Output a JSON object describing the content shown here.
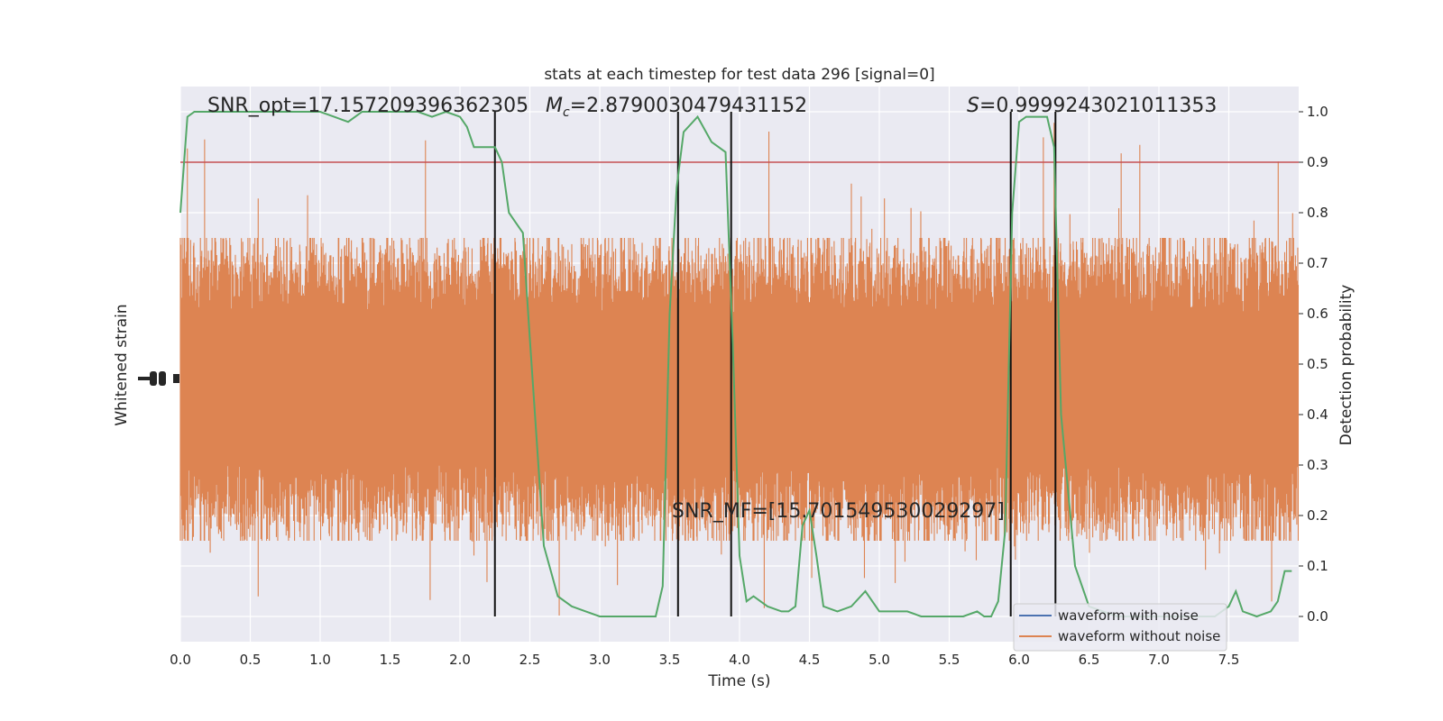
{
  "chart_data": {
    "type": "line",
    "title": "stats at each timestep for test data 296 [signal=0]",
    "xlabel": "Time (s)",
    "ylabel_left": "Whitened strain",
    "ylabel_right": "Detection probability",
    "xlim": [
      0.0,
      8.0
    ],
    "ylim_right": [
      -0.05,
      1.05
    ],
    "x_ticks": [
      "0.0",
      "0.5",
      "1.0",
      "1.5",
      "2.0",
      "2.5",
      "3.0",
      "3.5",
      "4.0",
      "4.5",
      "5.0",
      "5.5",
      "6.0",
      "6.5",
      "7.0",
      "7.5"
    ],
    "y_ticks_right": [
      "0.0",
      "0.1",
      "0.2",
      "0.3",
      "0.4",
      "0.5",
      "0.6",
      "0.7",
      "0.8",
      "0.9",
      "1.0"
    ],
    "grid": true,
    "threshold": 0.9,
    "vlines": [
      2.25,
      3.56,
      3.94,
      5.94,
      6.26
    ],
    "annotations": {
      "snr_opt": "SNR_opt=17.157209396362305",
      "mc_symbol": "M",
      "mc_sub": "c",
      "mc_value": "=2.8790030479431152",
      "s_symbol": "S",
      "s_value": "=0.9999243021011353",
      "snr_mf": "SNR_MF=[15.701549530029297]"
    },
    "legend": {
      "placement": "lower-right",
      "entries": [
        {
          "label": "waveform with noise",
          "color": "#4c72b0"
        },
        {
          "label": "waveform without noise",
          "color": "#dd8452"
        }
      ]
    },
    "series": [
      {
        "name": "Detection probability",
        "color": "#55a868",
        "x": [
          0.0,
          0.05,
          0.1,
          0.2,
          0.3,
          0.4,
          0.5,
          0.6,
          0.7,
          0.8,
          0.9,
          1.0,
          1.1,
          1.2,
          1.3,
          1.4,
          1.5,
          1.6,
          1.7,
          1.8,
          1.9,
          2.0,
          2.05,
          2.1,
          2.2,
          2.25,
          2.3,
          2.35,
          2.4,
          2.45,
          2.5,
          2.6,
          2.7,
          2.8,
          2.9,
          3.0,
          3.1,
          3.2,
          3.3,
          3.4,
          3.45,
          3.5,
          3.55,
          3.6,
          3.7,
          3.8,
          3.85,
          3.9,
          3.95,
          4.0,
          4.05,
          4.1,
          4.2,
          4.3,
          4.35,
          4.4,
          4.45,
          4.5,
          4.55,
          4.6,
          4.7,
          4.8,
          4.9,
          5.0,
          5.1,
          5.2,
          5.3,
          5.4,
          5.5,
          5.6,
          5.7,
          5.75,
          5.8,
          5.85,
          5.9,
          5.95,
          6.0,
          6.05,
          6.1,
          6.2,
          6.25,
          6.3,
          6.4,
          6.5,
          6.6,
          6.7,
          6.8,
          6.9,
          7.0,
          7.1,
          7.2,
          7.3,
          7.4,
          7.5,
          7.55,
          7.6,
          7.7,
          7.8,
          7.85,
          7.9,
          7.95
        ],
        "y": [
          0.8,
          0.99,
          1.0,
          1.0,
          1.0,
          1.0,
          1.0,
          1.0,
          1.0,
          1.0,
          1.0,
          1.0,
          0.99,
          0.98,
          1.0,
          1.0,
          1.0,
          1.0,
          1.0,
          0.99,
          1.0,
          0.99,
          0.97,
          0.93,
          0.93,
          0.93,
          0.9,
          0.8,
          0.78,
          0.76,
          0.55,
          0.14,
          0.04,
          0.02,
          0.01,
          0.0,
          0.0,
          0.0,
          0.0,
          0.0,
          0.06,
          0.6,
          0.85,
          0.96,
          0.99,
          0.94,
          0.93,
          0.92,
          0.55,
          0.12,
          0.03,
          0.04,
          0.02,
          0.01,
          0.01,
          0.02,
          0.18,
          0.21,
          0.12,
          0.02,
          0.01,
          0.02,
          0.05,
          0.01,
          0.01,
          0.01,
          0.0,
          0.0,
          0.0,
          0.0,
          0.01,
          0.0,
          0.0,
          0.03,
          0.17,
          0.8,
          0.98,
          0.99,
          0.99,
          0.99,
          0.93,
          0.4,
          0.1,
          0.02,
          0.01,
          0.0,
          0.0,
          0.0,
          0.0,
          0.0,
          0.0,
          0.0,
          0.0,
          0.02,
          0.05,
          0.01,
          0.0,
          0.01,
          0.03,
          0.09,
          0.09
        ]
      },
      {
        "name": "waveform without noise",
        "color": "#dd8452",
        "render": "dense noise band",
        "core_band": [
          0.3,
          0.6
        ],
        "typical_peaks": [
          0.15,
          0.75
        ],
        "max_peak": 1.0,
        "min_trough": 0.0
      }
    ]
  }
}
